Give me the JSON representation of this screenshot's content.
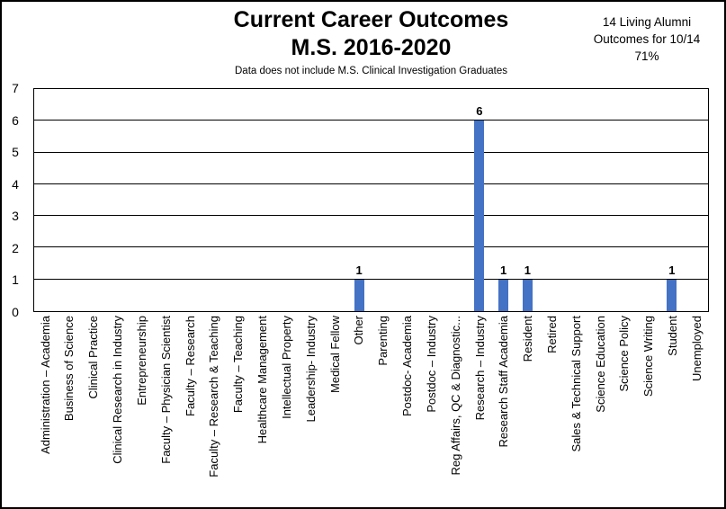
{
  "header": {
    "title_line1": "Current Career Outcomes",
    "title_line2": "M.S. 2016-2020",
    "subtitle": "Data does not include M.S. Clinical Investigation Graduates"
  },
  "note": {
    "line1": "14 Living Alumni",
    "line2": "Outcomes for 10/14",
    "line3": "71%"
  },
  "colors": {
    "bar": "#4472C4",
    "grid": "#000000",
    "plot_border": "#000000",
    "text": "#000000",
    "background": "#FFFFFF"
  },
  "chart_data": {
    "type": "bar",
    "title": "Current Career Outcomes M.S. 2016-2020",
    "subtitle": "Data does not include M.S. Clinical Investigation Graduates",
    "annotation": "14 Living Alumni Outcomes for 10/14 71%",
    "categories": [
      "Administration – Academia",
      "Business of Science",
      "Clinical Practice",
      "Clinical Research in Industry",
      "Entrepreneurship",
      "Faculty – Physician Scientist",
      "Faculty – Research",
      "Faculty – Research & Teaching",
      "Faculty – Teaching",
      "Healthcare Management",
      "Intellectual Property",
      "Leadership- Industry",
      "Medical Fellow",
      "Other",
      "Parenting",
      "Postdoc- Academia",
      "Postdoc – Industry",
      "Reg Affairs, QC & Diagnostic...",
      "Research – Industry",
      "Research Staff Academia",
      "Resident",
      "Retired",
      "Sales & Technical Support",
      "Science Education",
      "Science Policy",
      "Science Writing",
      "Student",
      "Unemployed"
    ],
    "values": [
      0,
      0,
      0,
      0,
      0,
      0,
      0,
      0,
      0,
      0,
      0,
      0,
      0,
      1,
      0,
      0,
      0,
      0,
      6,
      1,
      1,
      0,
      0,
      0,
      0,
      0,
      1,
      0
    ],
    "xlabel": "",
    "ylabel": "",
    "ylim": [
      0,
      7
    ],
    "yticks": [
      0,
      1,
      2,
      3,
      4,
      5,
      6,
      7
    ],
    "grid": true,
    "legend": "none",
    "bar_color": "#4472C4",
    "data_labels": "values shown above nonzero bars"
  }
}
